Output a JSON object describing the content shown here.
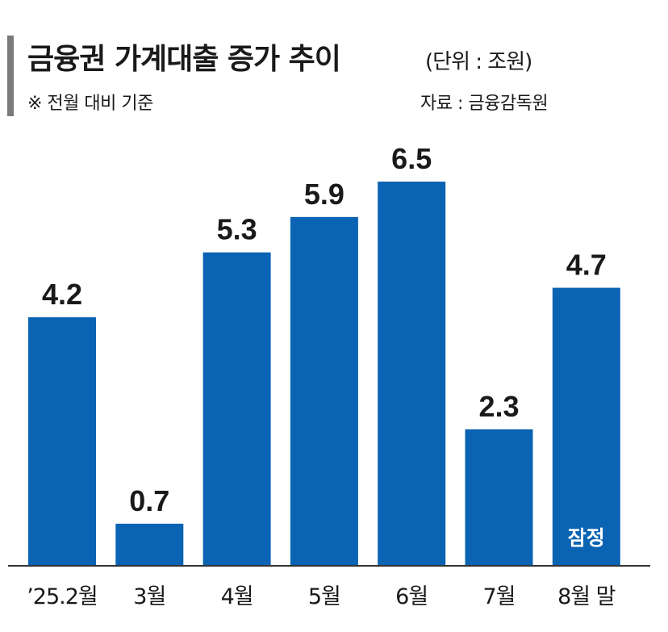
{
  "header": {
    "title": "금융권 가계대출 증가 추이",
    "unit": "(단위 : 조원)",
    "note": "※ 전월 대비 기준",
    "source": "자료 : 금융감독원"
  },
  "chart_data": {
    "type": "bar",
    "categories": [
      "’25.2월",
      "3월",
      "4월",
      "5월",
      "6월",
      "7월",
      "8월 말"
    ],
    "values": [
      4.2,
      0.7,
      5.3,
      5.9,
      6.5,
      2.3,
      4.7
    ],
    "value_labels": [
      "4.2",
      "0.7",
      "5.3",
      "5.9",
      "6.5",
      "2.3",
      "4.7"
    ],
    "ylim": [
      0,
      6.5
    ],
    "bar_annotation": {
      "index": 6,
      "text": "잠정"
    },
    "bar_color": "#0a63b3",
    "axis_color": "#333333",
    "grid": false
  }
}
